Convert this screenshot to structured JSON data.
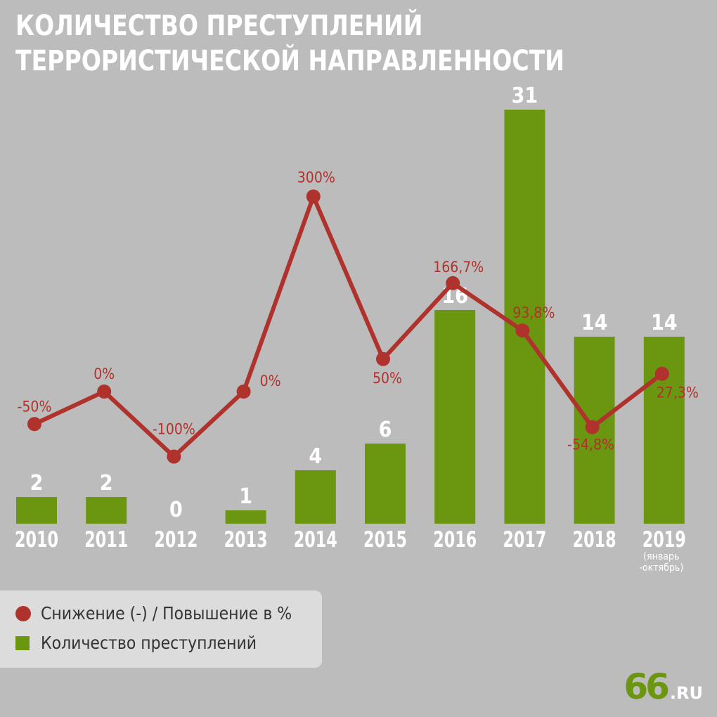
{
  "title": {
    "line1": "КОЛИЧЕСТВО ПРЕСТУПЛЕНИЙ",
    "line2": "ТЕРРОРИСТИЧЕСКОЙ НАПРАВЛЕННОСТИ"
  },
  "legend": {
    "line_label": "Снижение (-) / Повышение в %",
    "bar_label": "Количество преступлений"
  },
  "logo": {
    "number": "66",
    "domain": ".RU"
  },
  "colors": {
    "background": "#bcbcbc",
    "bar": "#6b9610",
    "line": "#b0322c",
    "text_white": "#ffffff"
  },
  "chart_data": {
    "type": "bar",
    "categories": [
      "2010",
      "2011",
      "2012",
      "2013",
      "2014",
      "2015",
      "2016",
      "2017",
      "2018",
      "2019"
    ],
    "category_notes": [
      "",
      "",
      "",
      "",
      "",
      "",
      "",
      "",
      "",
      "(январь\n-октябрь)"
    ],
    "series": [
      {
        "name": "Количество преступлений",
        "type": "bar",
        "values": [
          2,
          2,
          0,
          1,
          4,
          6,
          16,
          31,
          14,
          14
        ],
        "labels": [
          "2",
          "2",
          "0",
          "1",
          "4",
          "6",
          "16",
          "31",
          "14",
          "14"
        ]
      },
      {
        "name": "Снижение (-) / Повышение в %",
        "type": "line",
        "values": [
          -50,
          0,
          -100,
          0,
          300,
          50,
          166.7,
          93.8,
          -54.8,
          27.3
        ],
        "labels": [
          "-50%",
          "0%",
          "-100%",
          "0%",
          "300%",
          "50%",
          "166,7%",
          "93,8%",
          "-54,8%",
          "27,3%"
        ]
      }
    ],
    "xlabel": "",
    "ylabel": "",
    "legend_position": "bottom-left",
    "grid": false
  }
}
